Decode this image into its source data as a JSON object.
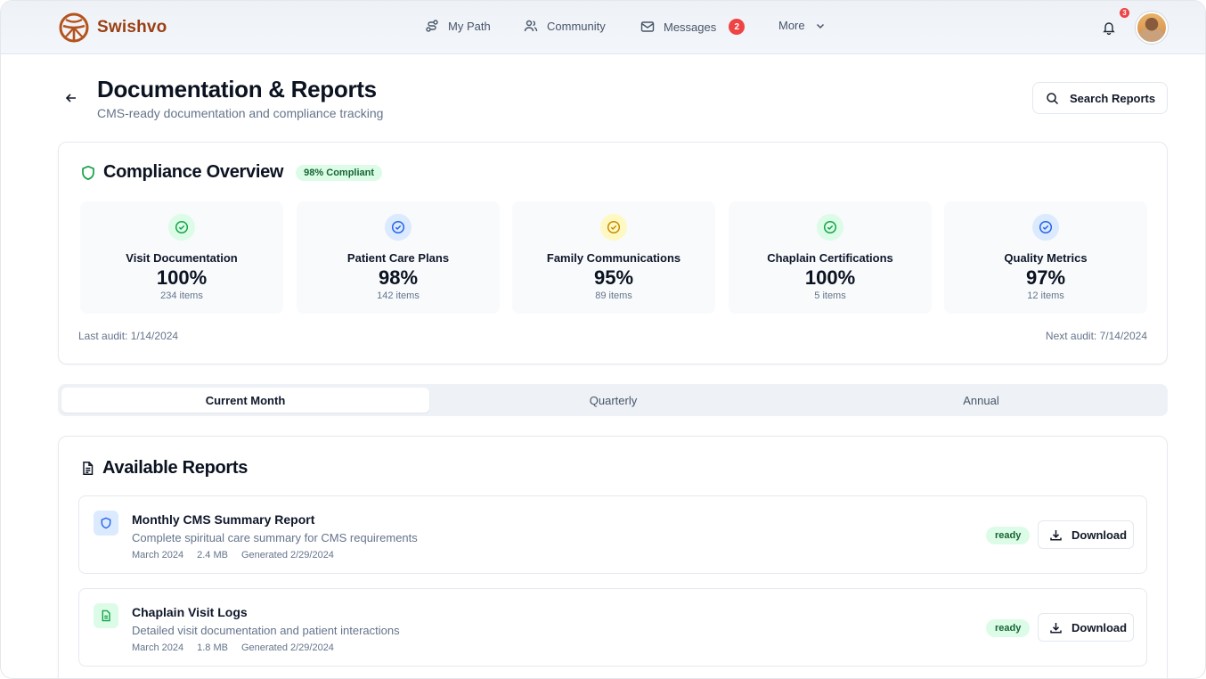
{
  "nav": {
    "brand": "Swishvo",
    "items": [
      {
        "label": "My Path",
        "icon": "route-icon"
      },
      {
        "label": "Community",
        "icon": "users-icon"
      },
      {
        "label": "Messages",
        "icon": "mail-icon",
        "badge": "2"
      },
      {
        "label": "More",
        "icon": "chevron-down-icon"
      }
    ],
    "notification_count": "3"
  },
  "header": {
    "title": "Documentation & Reports",
    "subtitle": "CMS-ready documentation and compliance tracking",
    "search_label": "Search Reports"
  },
  "compliance": {
    "title": "Compliance Overview",
    "badge": "98% Compliant",
    "metrics": [
      {
        "label": "Visit Documentation",
        "value": "100%",
        "count": "234 items",
        "color": "#22c55e"
      },
      {
        "label": "Patient Care Plans",
        "value": "98%",
        "count": "142 items",
        "color": "#3b82f6"
      },
      {
        "label": "Family Communications",
        "value": "95%",
        "count": "89 items",
        "color": "#eab308"
      },
      {
        "label": "Chaplain Certifications",
        "value": "100%",
        "count": "5 items",
        "color": "#22c55e"
      },
      {
        "label": "Quality Metrics",
        "value": "97%",
        "count": "12 items",
        "color": "#3b82f6"
      }
    ],
    "last_audit": "Last audit: 1/14/2024",
    "next_audit": "Next audit: 7/14/2024"
  },
  "tabs": [
    {
      "label": "Current Month",
      "active": true
    },
    {
      "label": "Quarterly",
      "active": false
    },
    {
      "label": "Annual",
      "active": false
    }
  ],
  "reports": {
    "title": "Available Reports",
    "items": [
      {
        "name": "Monthly CMS Summary Report",
        "description": "Complete spiritual care summary for CMS requirements",
        "period": "March 2024",
        "size": "2.4 MB",
        "generated": "Generated 2/29/2024",
        "status": "ready",
        "download_label": "Download",
        "icon": "shield-icon"
      },
      {
        "name": "Chaplain Visit Logs",
        "description": "Detailed visit documentation and patient interactions",
        "period": "March 2024",
        "size": "1.8 MB",
        "generated": "Generated 2/29/2024",
        "status": "ready",
        "download_label": "Download",
        "icon": "file-icon"
      }
    ]
  },
  "colors": {
    "brand": "#9a3f14",
    "accent_green": "#22c55e",
    "accent_blue": "#3b82f6",
    "accent_yellow": "#eab308",
    "badge_red": "#ef4444"
  }
}
